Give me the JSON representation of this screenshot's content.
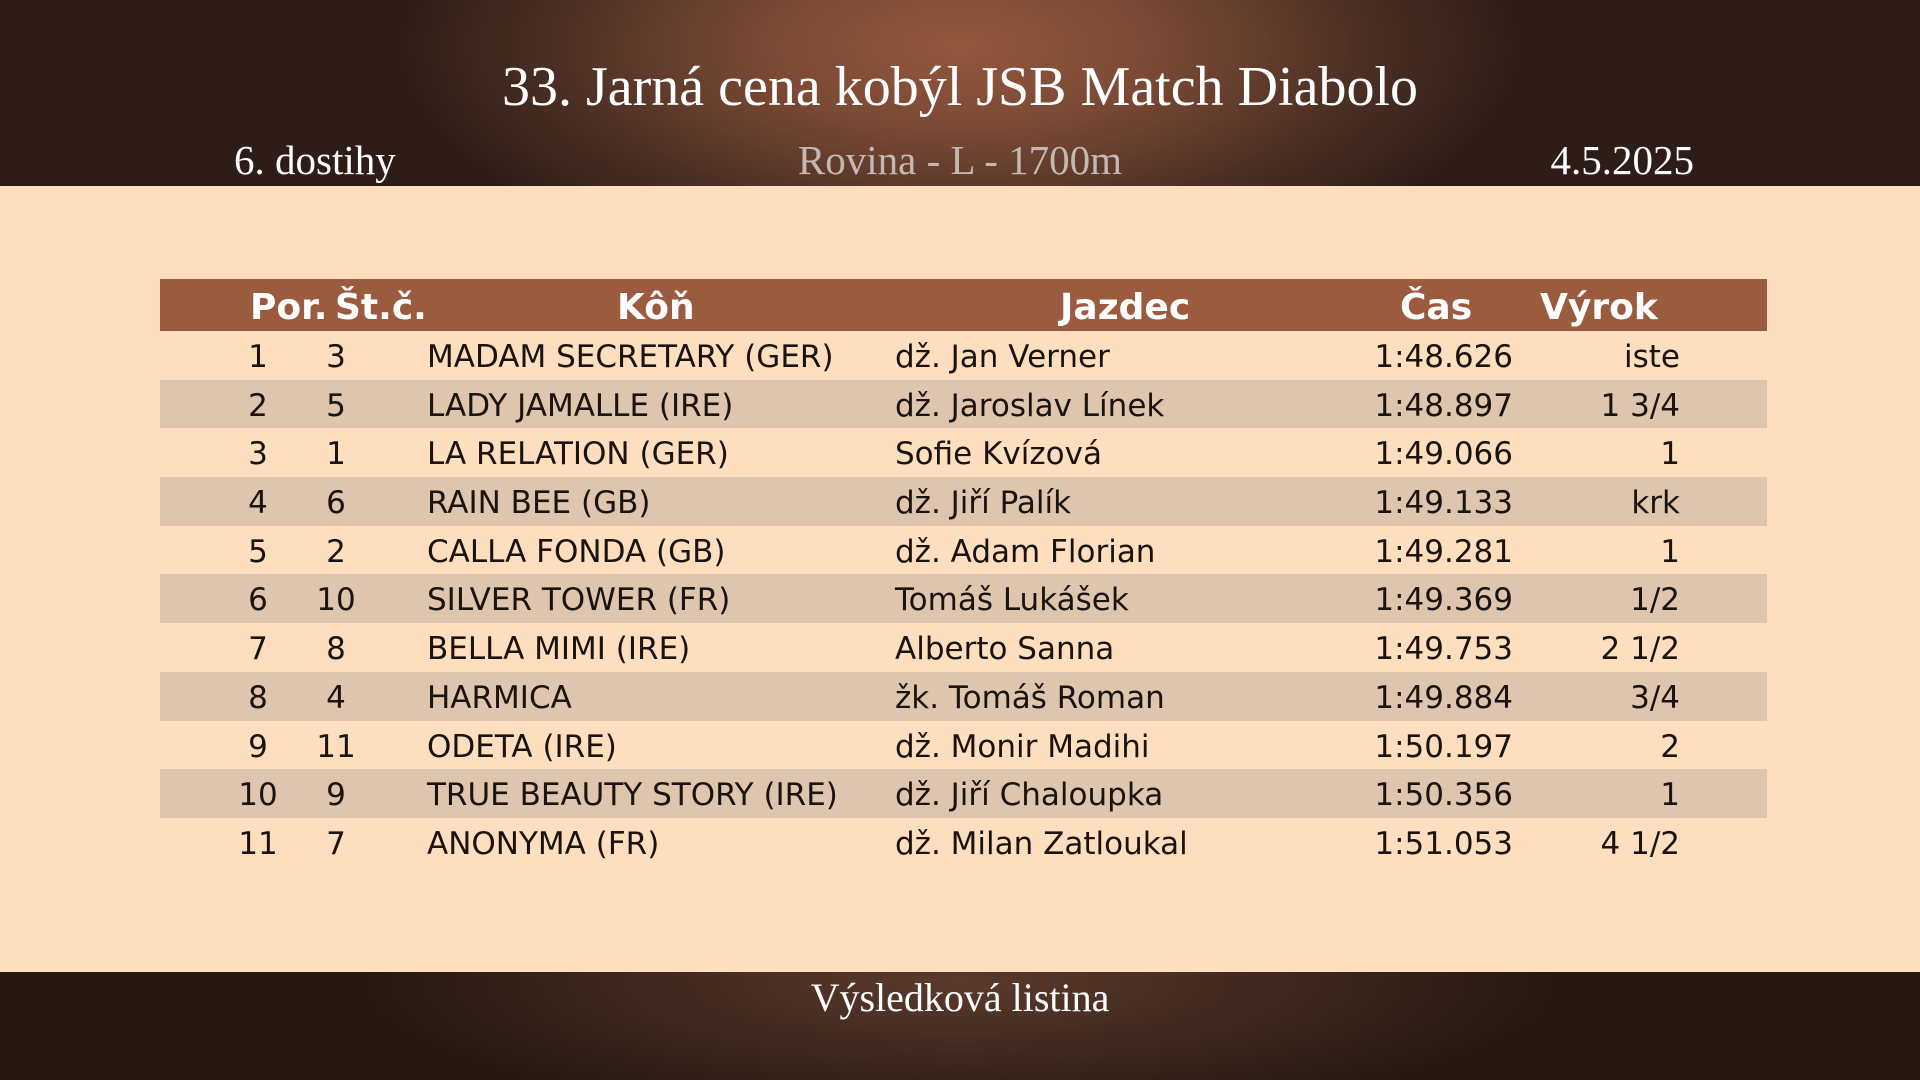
{
  "header": {
    "title": "33. Jarná cena kobýl JSB Match Diabolo",
    "race_no": "6. dostihy",
    "track": "Rovina - L - 1700m",
    "date": "4.5.2025"
  },
  "table": {
    "columns": [
      "Por.",
      "Št.č.",
      "Kôň",
      "Jazdec",
      "Čas",
      "Výrok"
    ],
    "rows": [
      {
        "pos": "1",
        "num": "3",
        "horse": "MADAM SECRETARY (GER)",
        "jockey": "dž. Jan Verner",
        "time": "1:48.626",
        "result": "iste"
      },
      {
        "pos": "2",
        "num": "5",
        "horse": "LADY JAMALLE (IRE)",
        "jockey": "dž. Jaroslav Línek",
        "time": "1:48.897",
        "result": "1 3/4"
      },
      {
        "pos": "3",
        "num": "1",
        "horse": "LA RELATION (GER)",
        "jockey": "Sofie Kvízová",
        "time": "1:49.066",
        "result": "1"
      },
      {
        "pos": "4",
        "num": "6",
        "horse": "RAIN BEE (GB)",
        "jockey": "dž. Jiří Palík",
        "time": "1:49.133",
        "result": "krk"
      },
      {
        "pos": "5",
        "num": "2",
        "horse": "CALLA FONDA (GB)",
        "jockey": "dž. Adam Florian",
        "time": "1:49.281",
        "result": "1"
      },
      {
        "pos": "6",
        "num": "10",
        "horse": "SILVER TOWER (FR)",
        "jockey": "Tomáš Lukášek",
        "time": "1:49.369",
        "result": "1/2"
      },
      {
        "pos": "7",
        "num": "8",
        "horse": "BELLA MIMI (IRE)",
        "jockey": "Alberto Sanna",
        "time": "1:49.753",
        "result": "2 1/2"
      },
      {
        "pos": "8",
        "num": "4",
        "horse": "HARMICA",
        "jockey": "žk. Tomáš Roman",
        "time": "1:49.884",
        "result": "3/4"
      },
      {
        "pos": "9",
        "num": "11",
        "horse": "ODETA (IRE)",
        "jockey": "dž. Monir Madihi",
        "time": "1:50.197",
        "result": "2"
      },
      {
        "pos": "10",
        "num": "9",
        "horse": "TRUE BEAUTY STORY (IRE)",
        "jockey": "dž. Jiří Chaloupka",
        "time": "1:50.356",
        "result": "1"
      },
      {
        "pos": "11",
        "num": "7",
        "horse": "ANONYMA (FR)",
        "jockey": "dž. Milan Zatloukal",
        "time": "1:51.053",
        "result": "4 1/2"
      }
    ]
  },
  "footer": {
    "text": "Výsledková listina"
  }
}
